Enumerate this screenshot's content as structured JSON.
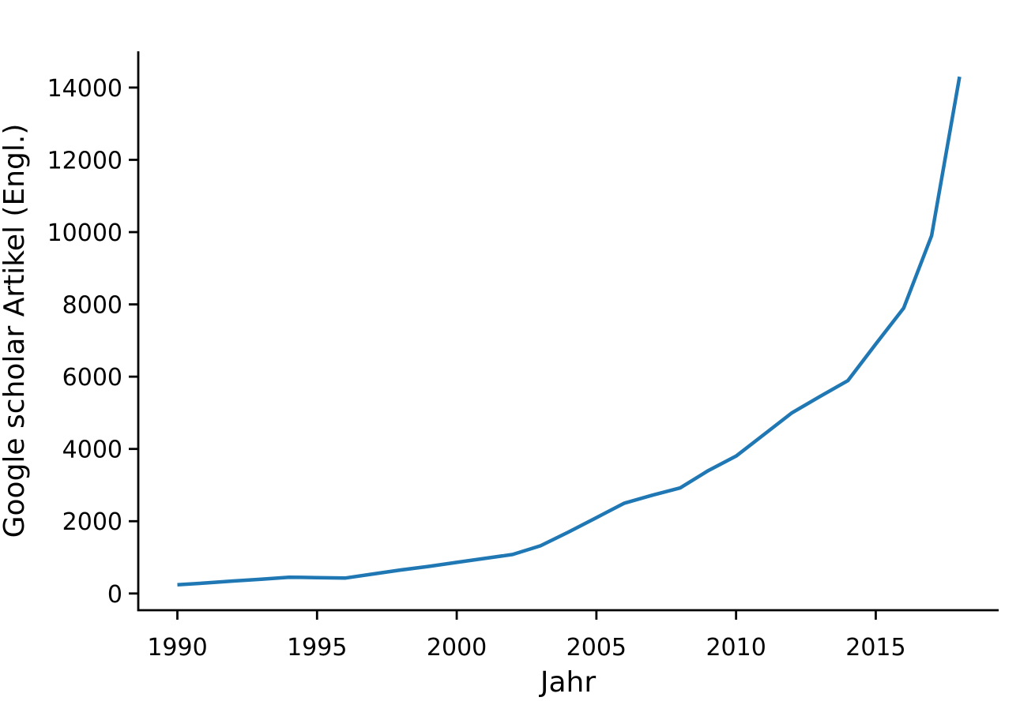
{
  "chart_data": {
    "type": "line",
    "title": "",
    "xlabel": "Jahr",
    "ylabel": "Google scholar Artikel (Engl.)",
    "x": [
      1990,
      1991,
      1992,
      1993,
      1994,
      1995,
      1996,
      1997,
      1998,
      1999,
      2000,
      2001,
      2002,
      2003,
      2004,
      2005,
      2006,
      2007,
      2008,
      2009,
      2010,
      2011,
      2012,
      2013,
      2014,
      2015,
      2016,
      2017,
      2018
    ],
    "series": [
      {
        "name": "Google scholar Artikel (Engl.)",
        "values": [
          240,
          290,
          345,
          395,
          450,
          440,
          425,
          540,
          650,
          750,
          860,
          970,
          1080,
          1320,
          1700,
          2100,
          2500,
          2720,
          2920,
          3400,
          3800,
          4400,
          5000,
          5450,
          5890,
          6900,
          7900,
          9900,
          14300
        ]
      }
    ],
    "xticks": [
      1990,
      1995,
      2000,
      2005,
      2010,
      2015
    ],
    "yticks": [
      0,
      2000,
      4000,
      6000,
      8000,
      10000,
      12000,
      14000
    ],
    "xlim": [
      1988.6,
      2019.4
    ],
    "ylim": [
      -463,
      15003
    ],
    "grid": false,
    "legend": "none",
    "line_color": "#1f77b4",
    "axis_color": "#000000",
    "background_color": "#ffffff"
  }
}
